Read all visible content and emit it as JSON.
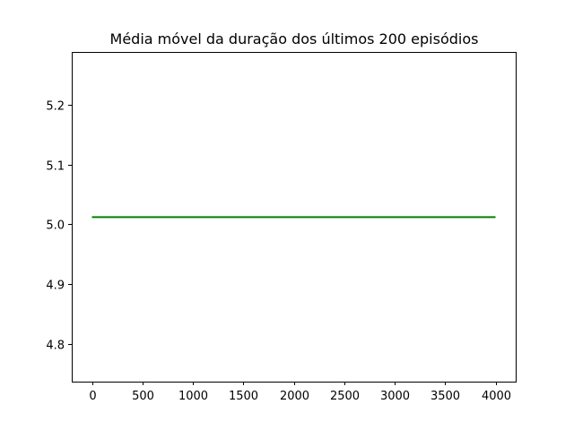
{
  "chart_data": {
    "type": "line",
    "title": "Média móvel da duração dos últimos 200 episódios",
    "xlabel": "",
    "ylabel": "",
    "xlim": [
      -200,
      4200
    ],
    "ylim": [
      4.737,
      5.288
    ],
    "x_ticks": [
      0,
      500,
      1000,
      1500,
      2000,
      2500,
      3000,
      3500,
      4000
    ],
    "x_tick_labels": [
      "0",
      "500",
      "1000",
      "1500",
      "2000",
      "2500",
      "3000",
      "3500",
      "4000"
    ],
    "y_ticks": [
      4.8,
      4.9,
      5.0,
      5.1,
      5.2
    ],
    "y_tick_labels": [
      "4.8",
      "4.9",
      "5.0",
      "5.1",
      "5.2"
    ],
    "grid": false,
    "series": [
      {
        "color": "#008000",
        "x": [
          0,
          4000
        ],
        "y": [
          5.012,
          5.012
        ]
      }
    ]
  }
}
